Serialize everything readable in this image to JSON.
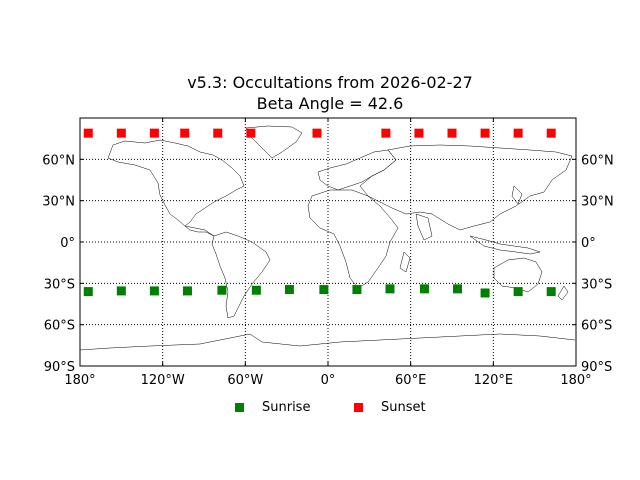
{
  "chart_data": {
    "type": "scatter",
    "title": "v5.3: Occultations from 2026-02-27",
    "subtitle": "Beta Angle = 42.6",
    "xlim": [
      -180,
      180
    ],
    "ylim": [
      -90,
      90
    ],
    "grid": true,
    "legend_placement": "bottom-center",
    "x_tick_labels": [
      "180°",
      "120°W",
      "60°W",
      "0°",
      "60°E",
      "120°E",
      "180°"
    ],
    "x_tick_values": [
      -180,
      -120,
      -60,
      0,
      60,
      120,
      180
    ],
    "y_tick_labels": [
      "90°S",
      "60°S",
      "30°S",
      "0°",
      "30°N",
      "60°N"
    ],
    "y_tick_values": [
      -90,
      -60,
      -30,
      0,
      30,
      60
    ],
    "series": [
      {
        "name": "Sunrise",
        "color": "#008000",
        "marker": "square",
        "x": [
          -174,
          -150,
          -126,
          -102,
          -77,
          -52,
          -28,
          -3,
          21,
          45,
          70,
          94,
          114,
          138,
          162
        ],
        "y": [
          -36,
          -35.5,
          -35.5,
          -35.5,
          -35,
          -35,
          -34.5,
          -34.5,
          -34.5,
          -34,
          -34,
          -34,
          -37,
          -36,
          -36
        ]
      },
      {
        "name": "Sunset",
        "color": "#ff0000",
        "marker": "square",
        "x": [
          -174,
          -150,
          -126,
          -104,
          -80,
          -56,
          -8,
          42,
          66,
          90,
          114,
          138,
          162
        ],
        "y": [
          79,
          79,
          79,
          79,
          79,
          79,
          79,
          79,
          79,
          79,
          79,
          79,
          79
        ]
      }
    ]
  }
}
